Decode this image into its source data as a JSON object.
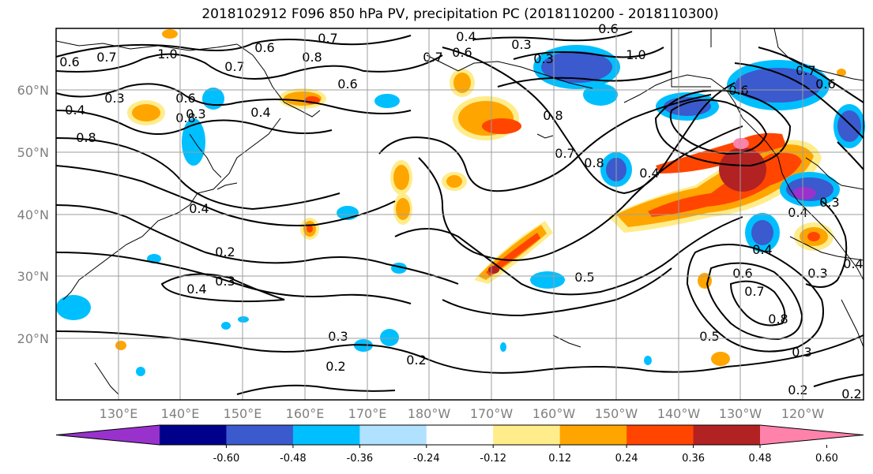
{
  "title": "2018102912 F096 850 hPa PV, precipitation PC (2018110200 - 2018110300)",
  "map": {
    "lat_labels": [
      "60°N",
      "50°N",
      "40°N",
      "30°N",
      "20°N"
    ],
    "lon_labels": [
      "130°E",
      "140°E",
      "150°E",
      "160°E",
      "170°E",
      "180°W",
      "170°W",
      "160°W",
      "150°W",
      "140°W",
      "130°W",
      "120°W"
    ],
    "contour_labels": [
      "0.6",
      "0.7",
      "1.0",
      "0.7",
      "0.6",
      "0.8",
      "0.7",
      "0.4",
      "0.6",
      "0.3",
      "0.6",
      "0.3",
      "1.0",
      "0.6",
      "0.6",
      "0.7",
      "0.4",
      "0.3",
      "0.8",
      "0.8",
      "0.4",
      "0.3",
      "0.4",
      "0.8",
      "0.7",
      "0.8",
      "0.4",
      "0.6",
      "0.7",
      "0.6",
      "0.4",
      "0.2",
      "0.3",
      "0.4",
      "0.5",
      "0.3",
      "0.6",
      "0.7",
      "0.8",
      "0.4",
      "0.4",
      "0.3",
      "0.2",
      "0.3",
      "0.2",
      "0.2",
      "0.5",
      "0.3",
      "0.2"
    ]
  },
  "colorbar": {
    "colors": [
      "#9932cc",
      "#00008b",
      "#3a5acd",
      "#00bfff",
      "#b0e2ff",
      "#ffffff",
      "#ffec8b",
      "#ffa500",
      "#ff4500",
      "#b22222",
      "#ff82ab"
    ],
    "tick_labels": [
      "-0.60",
      "-0.48",
      "-0.36",
      "-0.24",
      "-0.12",
      "0.12",
      "0.24",
      "0.36",
      "0.48",
      "0.60"
    ]
  },
  "colors": {
    "land_outline": "#000000",
    "grid": "#9e9e9e",
    "axis_text": "#7f7f7f"
  }
}
